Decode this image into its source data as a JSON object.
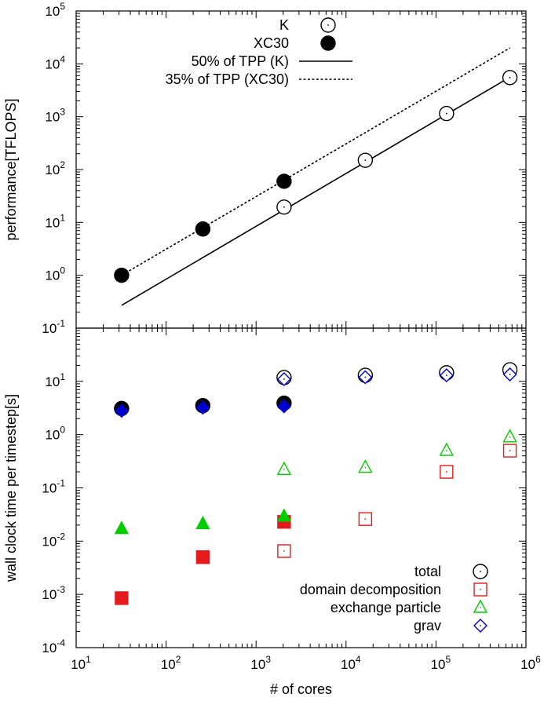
{
  "chart_data": [
    {
      "type": "scatter",
      "ylabel": "performance[TFLOPS]",
      "x_scale": "log",
      "y_scale": "log",
      "xlim": [
        10,
        1000000
      ],
      "ylim": [
        0.1,
        100000
      ],
      "grid": false,
      "legend_position": "top-right",
      "y_ticks": [
        {
          "value": 0.1,
          "base": "10",
          "exp": "-1"
        },
        {
          "value": 1,
          "base": "10",
          "exp": "0"
        },
        {
          "value": 10,
          "base": "10",
          "exp": "1"
        },
        {
          "value": 100,
          "base": "10",
          "exp": "2"
        },
        {
          "value": 1000,
          "base": "10",
          "exp": "3"
        },
        {
          "value": 10000,
          "base": "10",
          "exp": "4"
        },
        {
          "value": 100000,
          "base": "10",
          "exp": "5"
        }
      ],
      "series": [
        {
          "name": "K",
          "kind": "points",
          "marker": "circle-open-dot",
          "color": "#000000",
          "points": [
            [
              2048,
              19.5
            ],
            [
              16384,
              150
            ],
            [
              131072,
              1150
            ],
            [
              663552,
              5500
            ]
          ]
        },
        {
          "name": "XC30",
          "kind": "points",
          "marker": "circle-filled",
          "color": "#000000",
          "points": [
            [
              32,
              1.0
            ],
            [
              256,
              7.5
            ],
            [
              2048,
              60
            ]
          ]
        },
        {
          "name": "50% of TPP (K)",
          "kind": "line",
          "style": "solid",
          "color": "#000000",
          "points": [
            [
              32,
              0.27
            ],
            [
              663552,
              5600
            ]
          ]
        },
        {
          "name": "35% of TPP (XC30)",
          "kind": "line",
          "style": "dashed",
          "color": "#000000",
          "points": [
            [
              32,
              1.0
            ],
            [
              663552,
              20000
            ]
          ]
        }
      ]
    },
    {
      "type": "scatter",
      "xlabel": "# of cores",
      "ylabel": "wall clock time per timestep[s]",
      "x_scale": "log",
      "y_scale": "log",
      "xlim": [
        10,
        1000000
      ],
      "ylim": [
        0.0001,
        100
      ],
      "grid": false,
      "legend_position": "bottom-right",
      "x_ticks": [
        {
          "value": 10,
          "base": "10",
          "exp": "1"
        },
        {
          "value": 100,
          "base": "10",
          "exp": "2"
        },
        {
          "value": 1000,
          "base": "10",
          "exp": "3"
        },
        {
          "value": 10000,
          "base": "10",
          "exp": "4"
        },
        {
          "value": 100000,
          "base": "10",
          "exp": "5"
        },
        {
          "value": 1000000,
          "base": "10",
          "exp": "6"
        }
      ],
      "y_ticks": [
        {
          "value": 0.0001,
          "base": "10",
          "exp": "-4"
        },
        {
          "value": 0.001,
          "base": "10",
          "exp": "-3"
        },
        {
          "value": 0.01,
          "base": "10",
          "exp": "-2"
        },
        {
          "value": 0.1,
          "base": "10",
          "exp": "-1"
        },
        {
          "value": 1,
          "base": "10",
          "exp": "0"
        },
        {
          "value": 10,
          "base": "10",
          "exp": "1"
        }
      ],
      "series": [
        {
          "name": "total",
          "marker": "circle",
          "color": "#000000",
          "open_points": [
            [
              2048,
              11.8
            ],
            [
              16384,
              13
            ],
            [
              131072,
              14.5
            ],
            [
              663552,
              16.5
            ]
          ],
          "filled_points": [
            [
              32,
              3.1
            ],
            [
              256,
              3.5
            ],
            [
              2048,
              3.9
            ]
          ]
        },
        {
          "name": "domain decomposition",
          "marker": "square",
          "color": "#e41a1c",
          "open_points": [
            [
              2048,
              0.0065
            ],
            [
              16384,
              0.026
            ],
            [
              131072,
              0.2
            ],
            [
              663552,
              0.5
            ]
          ],
          "filled_points": [
            [
              32,
              0.00085
            ],
            [
              256,
              0.005
            ],
            [
              2048,
              0.023
            ]
          ]
        },
        {
          "name": "exchange particle",
          "marker": "triangle",
          "color": "#00cc00",
          "open_points": [
            [
              2048,
              0.22
            ],
            [
              16384,
              0.24
            ],
            [
              131072,
              0.5
            ],
            [
              663552,
              0.9
            ]
          ],
          "filled_points": [
            [
              32,
              0.017
            ],
            [
              256,
              0.021
            ],
            [
              2048,
              0.029
            ]
          ]
        },
        {
          "name": "grav",
          "marker": "diamond",
          "color": "#0000cc",
          "open_points": [
            [
              2048,
              11
            ],
            [
              16384,
              12
            ],
            [
              131072,
              13
            ],
            [
              663552,
              13.5
            ]
          ],
          "filled_points": [
            [
              32,
              2.8
            ],
            [
              256,
              3.2
            ],
            [
              2048,
              3.4
            ]
          ]
        }
      ]
    }
  ]
}
